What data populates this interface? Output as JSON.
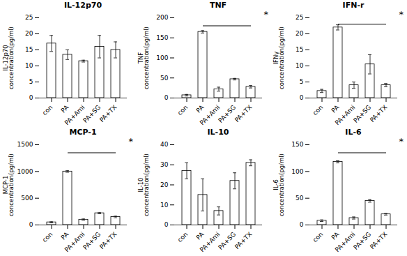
{
  "chart_data": [
    {
      "type": "bar",
      "title": "IL-12p70",
      "ylabel": "IL-12p70\nconcentration(pg/ml)",
      "categories": [
        "con",
        "PA",
        "PA+Ami",
        "PA+SG",
        "PA+TX"
      ],
      "values": [
        17.0,
        13.5,
        11.5,
        16.0,
        15.0
      ],
      "errors": [
        2.5,
        1.5,
        0.3,
        3.5,
        2.5
      ],
      "ylim": [
        0,
        25
      ],
      "yticks": [
        0,
        5,
        10,
        15,
        20,
        25
      ],
      "color": "white",
      "grid": false
    },
    {
      "type": "bar",
      "title": "TNF",
      "ylabel": "TNF\nconcentration(pg/ml)",
      "categories": [
        "con",
        "PA",
        "PA+Ami",
        "PA+SG",
        "PA+TX"
      ],
      "values": [
        7.0,
        165.0,
        22.0,
        47.0,
        28.0
      ],
      "errors": [
        2.0,
        3.0,
        5.0,
        2.0,
        3.0
      ],
      "ylim": [
        0,
        200
      ],
      "yticks": [
        0,
        50,
        100,
        150,
        200
      ],
      "color": "white",
      "grid": false,
      "sig_line": {
        "from": "PA",
        "to": "PA+TX",
        "y": 180
      },
      "annotation": "*"
    },
    {
      "type": "bar",
      "title": "IFN-r",
      "ylabel": "IFNγ\nconcentration(pg/ml)",
      "categories": [
        "con",
        "PA",
        "PA+Ami",
        "PA+SG",
        "PA+TX"
      ],
      "values": [
        2.2,
        22.0,
        4.0,
        10.5,
        4.0
      ],
      "errors": [
        0.5,
        0.8,
        1.0,
        3.0,
        0.5
      ],
      "ylim": [
        0,
        25
      ],
      "yticks": [
        0,
        5,
        10,
        15,
        20,
        25
      ],
      "color": "white",
      "grid": false,
      "sig_line": {
        "from": "PA",
        "to": "PA+TX",
        "y": 23
      },
      "annotation": "*"
    },
    {
      "type": "bar",
      "title": "MCP-1",
      "ylabel": "MCP-1\nconcentration(pg/ml)",
      "categories": [
        "con",
        "PA",
        "PA+Ami",
        "PA+SG",
        "PA+TX"
      ],
      "values": [
        50.0,
        1000.0,
        100.0,
        220.0,
        150.0
      ],
      "errors": [
        10.0,
        15.0,
        12.0,
        10.0,
        15.0
      ],
      "ylim": [
        0,
        1500
      ],
      "yticks": [
        0,
        500,
        1000,
        1500
      ],
      "color": "white",
      "grid": false,
      "sig_line": {
        "from": "PA",
        "to": "PA+TX",
        "y": 1350
      },
      "annotation": "*"
    },
    {
      "type": "bar",
      "title": "IL-10",
      "ylabel": "IL-10\nconcentration(pg/ml)",
      "categories": [
        "con",
        "PA",
        "PA+Ami",
        "PA+SG",
        "PA+TX"
      ],
      "values": [
        27.0,
        15.0,
        7.0,
        22.0,
        31.0
      ],
      "errors": [
        4.0,
        8.0,
        2.0,
        4.0,
        1.5
      ],
      "ylim": [
        0,
        40
      ],
      "yticks": [
        0,
        10,
        20,
        30,
        40
      ],
      "color": "white",
      "grid": false
    },
    {
      "type": "bar",
      "title": "IL-6",
      "ylabel": "IL-6\nconcentration(pg/ml)",
      "categories": [
        "con",
        "PA",
        "PA+Ami",
        "PA+SG",
        "PA+TX"
      ],
      "values": [
        8.0,
        118.0,
        13.0,
        45.0,
        20.0
      ],
      "errors": [
        1.5,
        2.0,
        2.0,
        2.5,
        1.5
      ],
      "ylim": [
        0,
        150
      ],
      "yticks": [
        0,
        50,
        100,
        150
      ],
      "color": "white",
      "grid": false,
      "sig_line": {
        "from": "PA",
        "to": "PA+TX",
        "y": 135
      },
      "annotation": "*"
    }
  ]
}
